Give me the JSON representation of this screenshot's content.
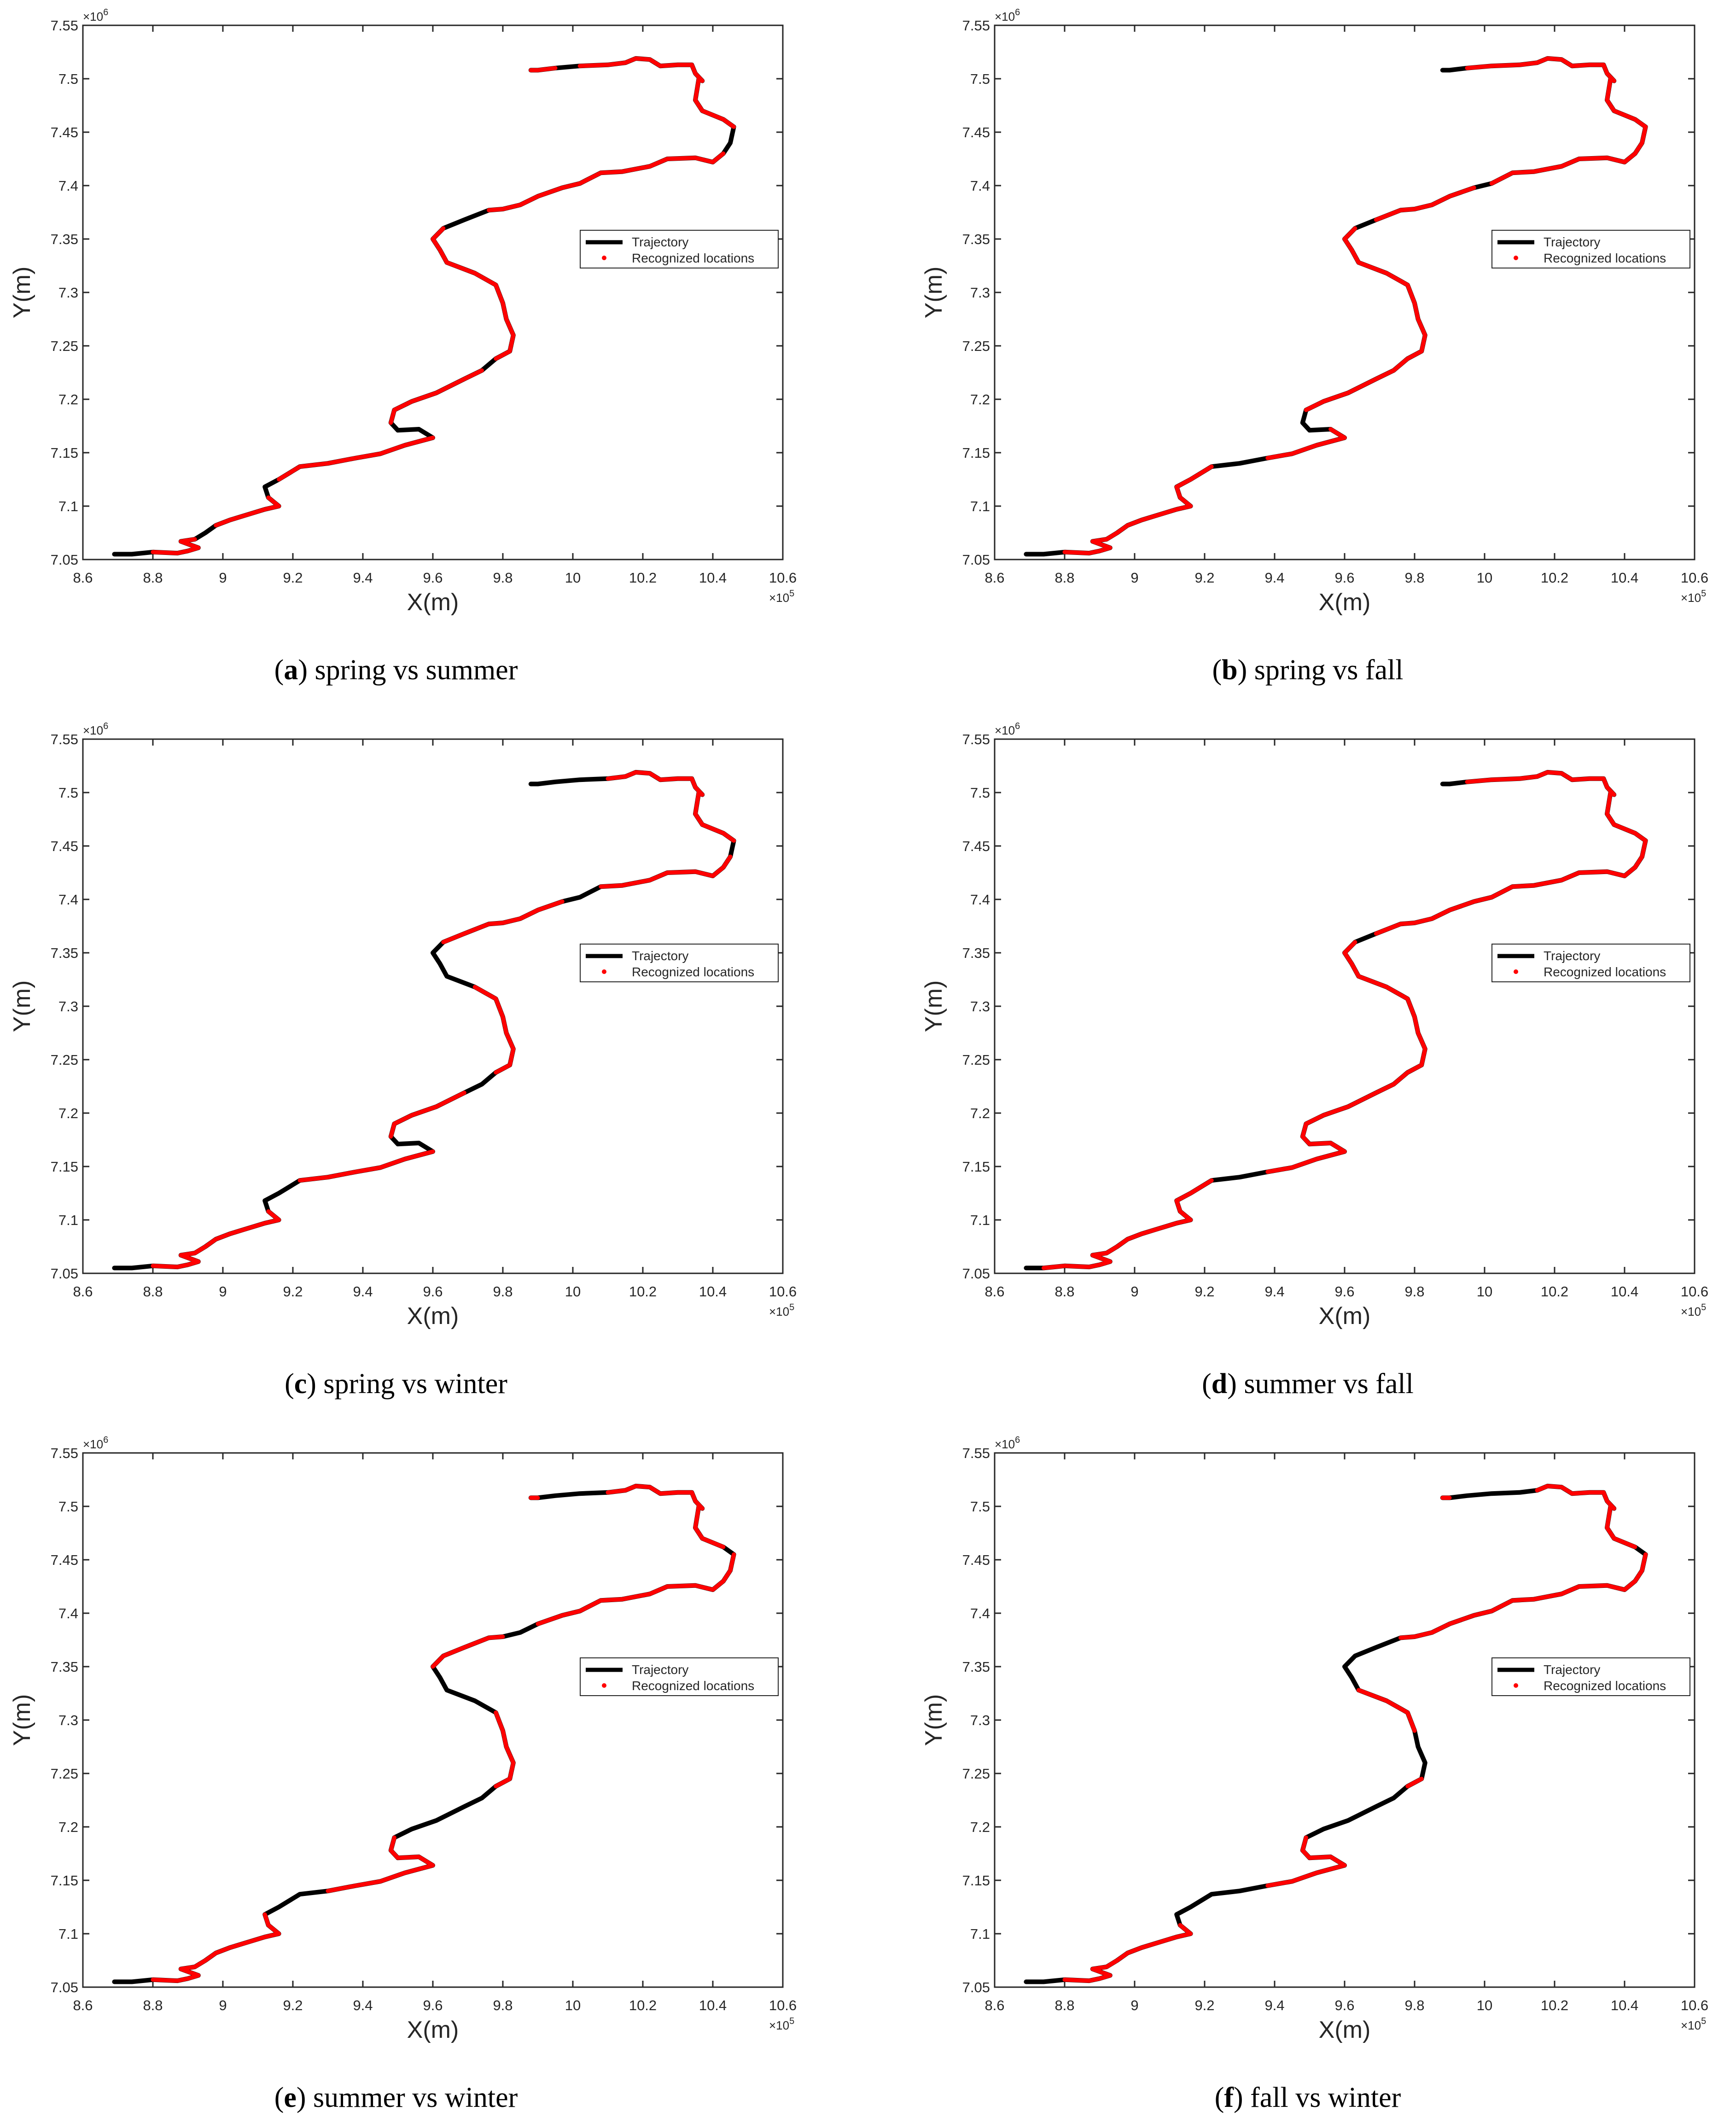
{
  "figure": {
    "panels": [
      {
        "label": "a",
        "caption": "spring vs summer",
        "black_segments": [
          [
            0,
            2
          ],
          [
            7,
            9
          ],
          [
            14,
            16
          ],
          [
            22,
            25
          ],
          [
            30,
            31
          ],
          [
            41,
            43
          ],
          [
            55,
            57
          ],
          [
            71,
            72
          ]
        ]
      },
      {
        "label": "b",
        "caption": "spring vs fall",
        "black_segments": [
          [
            0,
            2
          ],
          [
            17,
            19
          ],
          [
            23,
            26
          ],
          [
            41,
            42
          ],
          [
            47,
            48
          ],
          [
            72,
            74
          ]
        ]
      },
      {
        "label": "c",
        "caption": "spring vs winter",
        "black_segments": [
          [
            0,
            2
          ],
          [
            14,
            17
          ],
          [
            22,
            25
          ],
          [
            29,
            31
          ],
          [
            37,
            41
          ],
          [
            47,
            49
          ],
          [
            56,
            57
          ],
          [
            70,
            74
          ]
        ]
      },
      {
        "label": "d",
        "caption": "summer vs fall",
        "black_segments": [
          [
            0,
            1
          ],
          [
            17,
            19
          ],
          [
            41,
            42
          ],
          [
            72,
            74
          ]
        ]
      },
      {
        "label": "e",
        "caption": "summer vs winter",
        "black_segments": [
          [
            0,
            2
          ],
          [
            15,
            18
          ],
          [
            26,
            31
          ],
          [
            36,
            40
          ],
          [
            44,
            46
          ],
          [
            57,
            58
          ],
          [
            70,
            73
          ]
        ]
      },
      {
        "label": "f",
        "caption": "fall vs winter",
        "black_segments": [
          [
            0,
            2
          ],
          [
            14,
            19
          ],
          [
            26,
            31
          ],
          [
            32,
            35
          ],
          [
            38,
            43
          ],
          [
            57,
            58
          ],
          [
            69,
            73
          ]
        ]
      }
    ]
  },
  "chart_data": {
    "type": "line",
    "xlabel": "X(m)",
    "ylabel": "Y(m)",
    "x_exponent": "×10",
    "x_exponent_power": "5",
    "y_exponent": "×10",
    "y_exponent_power": "6",
    "xlim": [
      8.6,
      10.6
    ],
    "ylim": [
      7.05,
      7.55
    ],
    "xticks": [
      "8.6",
      "8.8",
      "9",
      "9.2",
      "9.4",
      "9.6",
      "9.8",
      "10",
      "10.2",
      "10.4",
      "10.6"
    ],
    "yticks": [
      "7.05",
      "7.1",
      "7.15",
      "7.2",
      "7.25",
      "7.3",
      "7.35",
      "7.4",
      "7.45",
      "7.5",
      "7.55"
    ],
    "legend": {
      "placement": "right",
      "entries": [
        {
          "name": "Trajectory",
          "color": "#000000",
          "style": "line"
        },
        {
          "name": "Recognized locations",
          "color": "#ff0000",
          "style": "dot"
        }
      ]
    },
    "colors": {
      "trajectory": "#000000",
      "recognized": "#ff0000"
    },
    "trajectory_units": "x in 10^5 m, y in 10^6 m",
    "trajectory": [
      [
        8.69,
        7.055
      ],
      [
        8.74,
        7.055
      ],
      [
        8.8,
        7.057
      ],
      [
        8.87,
        7.056
      ],
      [
        8.9,
        7.058
      ],
      [
        8.93,
        7.061
      ],
      [
        8.88,
        7.067
      ],
      [
        8.92,
        7.069
      ],
      [
        8.95,
        7.075
      ],
      [
        8.98,
        7.082
      ],
      [
        9.02,
        7.087
      ],
      [
        9.06,
        7.091
      ],
      [
        9.12,
        7.097
      ],
      [
        9.16,
        7.1
      ],
      [
        9.13,
        7.108
      ],
      [
        9.12,
        7.118
      ],
      [
        9.16,
        7.125
      ],
      [
        9.22,
        7.137
      ],
      [
        9.3,
        7.14
      ],
      [
        9.38,
        7.145
      ],
      [
        9.45,
        7.149
      ],
      [
        9.52,
        7.157
      ],
      [
        9.6,
        7.164
      ],
      [
        9.56,
        7.172
      ],
      [
        9.5,
        7.171
      ],
      [
        9.48,
        7.178
      ],
      [
        9.49,
        7.19
      ],
      [
        9.54,
        7.198
      ],
      [
        9.61,
        7.206
      ],
      [
        9.69,
        7.219
      ],
      [
        9.74,
        7.227
      ],
      [
        9.78,
        7.238
      ],
      [
        9.82,
        7.245
      ],
      [
        9.83,
        7.26
      ],
      [
        9.81,
        7.275
      ],
      [
        9.8,
        7.29
      ],
      [
        9.78,
        7.307
      ],
      [
        9.72,
        7.318
      ],
      [
        9.64,
        7.328
      ],
      [
        9.62,
        7.34
      ],
      [
        9.6,
        7.35
      ],
      [
        9.63,
        7.36
      ],
      [
        9.69,
        7.368
      ],
      [
        9.76,
        7.377
      ],
      [
        9.8,
        7.378
      ],
      [
        9.85,
        7.382
      ],
      [
        9.9,
        7.39
      ],
      [
        9.97,
        7.398
      ],
      [
        10.02,
        7.402
      ],
      [
        10.08,
        7.412
      ],
      [
        10.14,
        7.413
      ],
      [
        10.22,
        7.418
      ],
      [
        10.27,
        7.425
      ],
      [
        10.35,
        7.426
      ],
      [
        10.4,
        7.422
      ],
      [
        10.43,
        7.43
      ],
      [
        10.45,
        7.44
      ],
      [
        10.46,
        7.455
      ],
      [
        10.43,
        7.462
      ],
      [
        10.37,
        7.47
      ],
      [
        10.35,
        7.48
      ],
      [
        10.36,
        7.5
      ],
      [
        10.37,
        7.498
      ],
      [
        10.35,
        7.505
      ],
      [
        10.34,
        7.513
      ],
      [
        10.3,
        7.513
      ],
      [
        10.25,
        7.512
      ],
      [
        10.22,
        7.518
      ],
      [
        10.18,
        7.519
      ],
      [
        10.15,
        7.515
      ],
      [
        10.1,
        7.513
      ],
      [
        10.02,
        7.512
      ],
      [
        9.95,
        7.51
      ],
      [
        9.9,
        7.508
      ],
      [
        9.88,
        7.508
      ]
    ]
  }
}
